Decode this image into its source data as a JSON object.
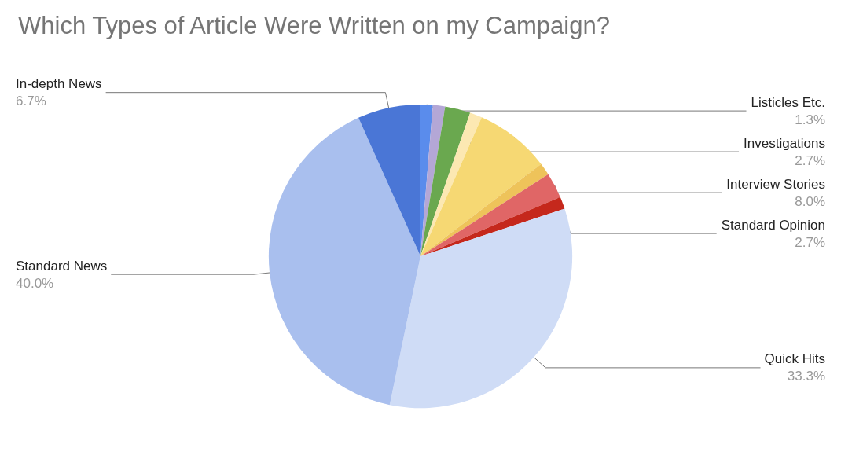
{
  "chart_data": {
    "type": "pie",
    "title": "Which Types of Article Were Written on my Campaign?",
    "categories": [
      "Listicles Etc.",
      null,
      "Investigations",
      null,
      "Interview Stories",
      null,
      "Standard Opinion",
      null,
      "Quick Hits",
      "Standard News",
      "In-depth News"
    ],
    "values": [
      1.3,
      1.3,
      2.7,
      1.3,
      8.0,
      1.3,
      2.7,
      1.3,
      33.3,
      40.0,
      6.7
    ],
    "value_labels": [
      "1.3%",
      null,
      "2.7%",
      null,
      "8.0%",
      null,
      "2.7%",
      null,
      "33.3%",
      "40.0%",
      "6.7%"
    ],
    "colors": [
      "#5a8cec",
      "#b4a7d6",
      "#6aa84f",
      "#fce8b2",
      "#f6d873",
      "#eec35a",
      "#e06666",
      "#c5281c",
      "#cfdcf6",
      "#a9bfee",
      "#4a76d6"
    ],
    "legend": false
  }
}
